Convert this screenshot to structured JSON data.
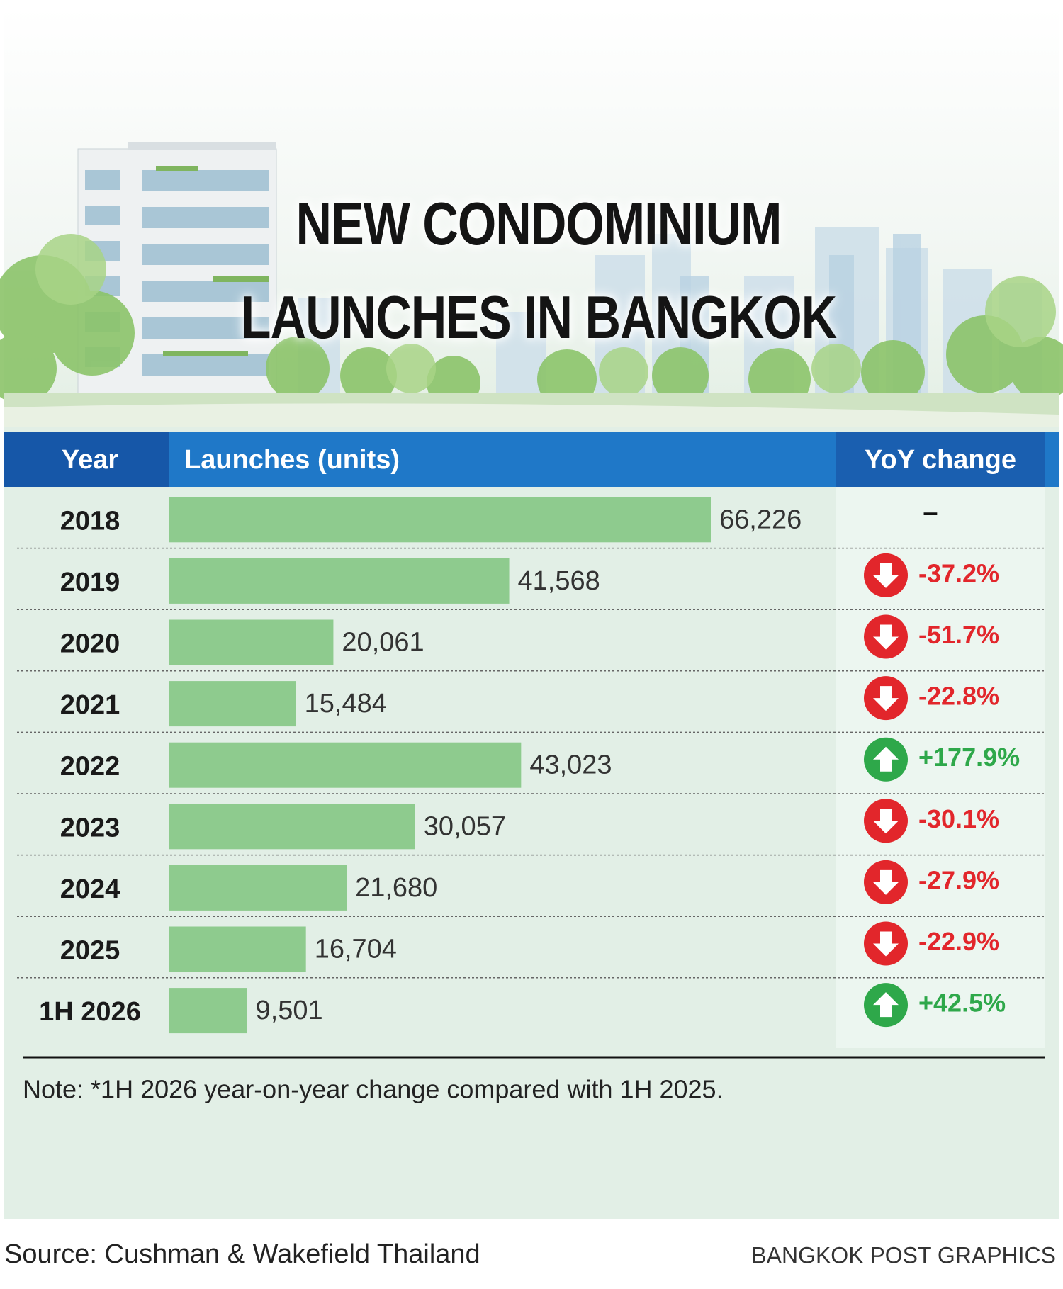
{
  "chart_data": {
    "type": "bar",
    "title": "NEW CONDOMINIUM LAUNCHES IN BANGKOK",
    "headers": [
      "Year",
      "Launches (units)",
      "YoY change"
    ],
    "categories": [
      "2018",
      "2019",
      "2020",
      "2021",
      "2022",
      "2023",
      "2024",
      "2025",
      "1H 2026"
    ],
    "values": [
      66226,
      41568,
      20061,
      15484,
      43023,
      30057,
      21680,
      16704,
      9501
    ],
    "value_labels": [
      "66,226",
      "41,568",
      "20,061",
      "15,484",
      "43,023",
      "30,057",
      "21,680",
      "16,704",
      "9,501"
    ],
    "color": "#8ecb8e",
    "yoy_change": {
      "values": [
        null,
        -37.2,
        -51.7,
        -22.8,
        177.9,
        -30.1,
        -27.9,
        -22.9,
        42.5
      ],
      "value_labels": [
        "–",
        "-37.2%",
        "-51.7%",
        "-22.8%",
        "+177.9%",
        "-30.1%",
        "-27.9%",
        "-22.9%",
        "+42.5%"
      ],
      "up_color": "#2ea84a",
      "down_color": "#e2262b"
    },
    "note": "Note: *1H 2026 year-on-year change compared with 1H 2025.",
    "source": "Source: Cushman & Wakefield Thailand",
    "credit": "BANGKOK POST GRAPHICS"
  }
}
